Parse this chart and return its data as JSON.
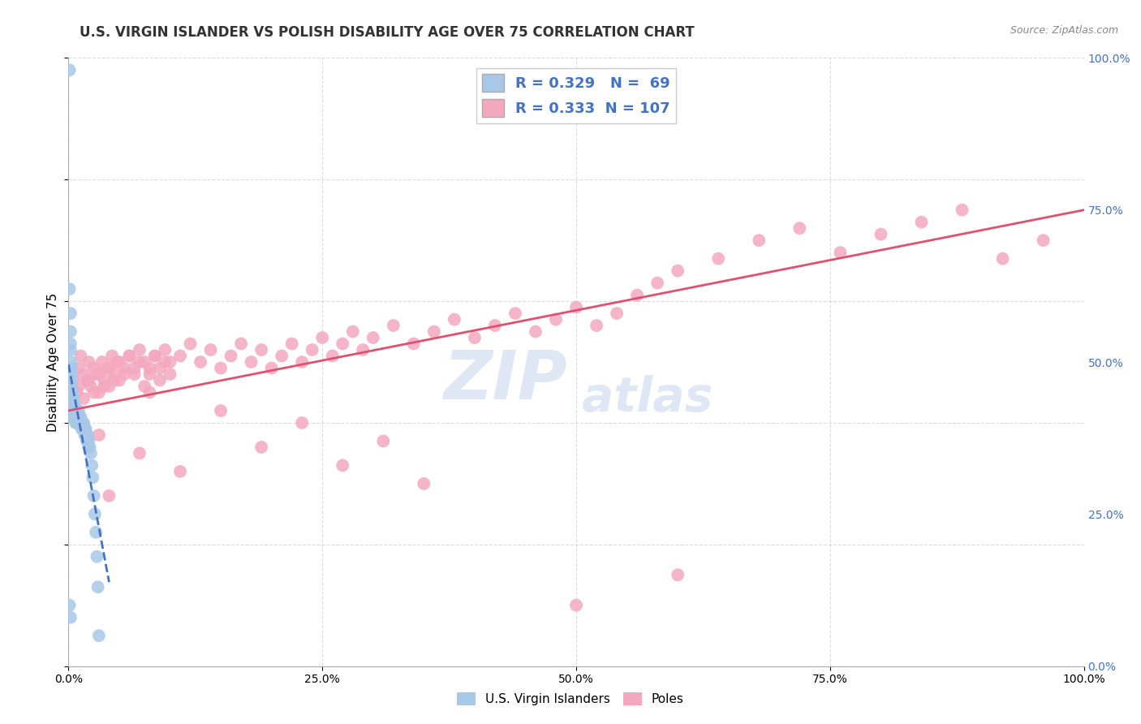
{
  "title": "U.S. VIRGIN ISLANDER VS POLISH DISABILITY AGE OVER 75 CORRELATION CHART",
  "source_text": "Source: ZipAtlas.com",
  "ylabel": "Disability Age Over 75",
  "blue_R": 0.329,
  "blue_N": 69,
  "pink_R": 0.333,
  "pink_N": 107,
  "blue_label": "U.S. Virgin Islanders",
  "pink_label": "Poles",
  "blue_color": "#A8C8E8",
  "pink_color": "#F4A8C0",
  "blue_line_color": "#4472C4",
  "pink_line_color": "#E05070",
  "background_color": "#FFFFFF",
  "watermark_color": "#C8D8EC",
  "title_fontsize": 12,
  "axis_label_fontsize": 11,
  "tick_fontsize": 10,
  "legend_fontsize": 13,
  "blue_points_x": [
    0.001,
    0.001,
    0.001,
    0.002,
    0.002,
    0.002,
    0.002,
    0.002,
    0.002,
    0.003,
    0.003,
    0.003,
    0.003,
    0.003,
    0.003,
    0.003,
    0.004,
    0.004,
    0.004,
    0.004,
    0.004,
    0.005,
    0.005,
    0.005,
    0.005,
    0.006,
    0.006,
    0.006,
    0.007,
    0.007,
    0.007,
    0.008,
    0.008,
    0.008,
    0.009,
    0.009,
    0.01,
    0.01,
    0.01,
    0.011,
    0.011,
    0.012,
    0.012,
    0.013,
    0.013,
    0.014,
    0.014,
    0.015,
    0.015,
    0.016,
    0.016,
    0.017,
    0.017,
    0.018,
    0.018,
    0.019,
    0.019,
    0.02,
    0.02,
    0.021,
    0.022,
    0.023,
    0.024,
    0.025,
    0.026,
    0.027,
    0.028,
    0.029,
    0.03
  ],
  "blue_points_y": [
    0.98,
    0.62,
    0.1,
    0.58,
    0.55,
    0.53,
    0.52,
    0.5,
    0.08,
    0.49,
    0.48,
    0.47,
    0.46,
    0.45,
    0.44,
    0.43,
    0.45,
    0.44,
    0.43,
    0.42,
    0.41,
    0.44,
    0.43,
    0.42,
    0.41,
    0.43,
    0.42,
    0.41,
    0.42,
    0.41,
    0.4,
    0.42,
    0.41,
    0.4,
    0.41,
    0.4,
    0.42,
    0.41,
    0.4,
    0.41,
    0.4,
    0.41,
    0.4,
    0.4,
    0.39,
    0.4,
    0.39,
    0.4,
    0.39,
    0.39,
    0.38,
    0.39,
    0.38,
    0.38,
    0.37,
    0.38,
    0.37,
    0.37,
    0.36,
    0.36,
    0.35,
    0.33,
    0.31,
    0.28,
    0.25,
    0.22,
    0.18,
    0.13,
    0.05
  ],
  "pink_points_x": [
    0.002,
    0.005,
    0.008,
    0.01,
    0.012,
    0.015,
    0.018,
    0.02,
    0.022,
    0.025,
    0.028,
    0.03,
    0.033,
    0.035,
    0.038,
    0.04,
    0.043,
    0.045,
    0.048,
    0.05,
    0.055,
    0.06,
    0.065,
    0.07,
    0.075,
    0.08,
    0.085,
    0.09,
    0.095,
    0.1,
    0.005,
    0.01,
    0.015,
    0.02,
    0.025,
    0.03,
    0.035,
    0.04,
    0.045,
    0.05,
    0.055,
    0.06,
    0.065,
    0.07,
    0.075,
    0.08,
    0.085,
    0.09,
    0.095,
    0.1,
    0.11,
    0.12,
    0.13,
    0.14,
    0.15,
    0.16,
    0.17,
    0.18,
    0.19,
    0.2,
    0.21,
    0.22,
    0.23,
    0.24,
    0.25,
    0.26,
    0.27,
    0.28,
    0.29,
    0.3,
    0.32,
    0.34,
    0.36,
    0.38,
    0.4,
    0.42,
    0.44,
    0.46,
    0.48,
    0.5,
    0.52,
    0.54,
    0.56,
    0.58,
    0.6,
    0.64,
    0.68,
    0.72,
    0.76,
    0.8,
    0.84,
    0.88,
    0.92,
    0.96,
    0.03,
    0.07,
    0.11,
    0.15,
    0.19,
    0.23,
    0.27,
    0.31,
    0.35,
    0.04,
    0.08,
    0.5,
    0.6
  ],
  "pink_points_y": [
    0.44,
    0.47,
    0.45,
    0.49,
    0.51,
    0.48,
    0.47,
    0.5,
    0.46,
    0.49,
    0.48,
    0.45,
    0.5,
    0.47,
    0.49,
    0.46,
    0.51,
    0.48,
    0.5,
    0.47,
    0.49,
    0.51,
    0.48,
    0.5,
    0.46,
    0.49,
    0.51,
    0.47,
    0.5,
    0.48,
    0.43,
    0.46,
    0.44,
    0.47,
    0.45,
    0.48,
    0.46,
    0.49,
    0.47,
    0.5,
    0.48,
    0.51,
    0.49,
    0.52,
    0.5,
    0.48,
    0.51,
    0.49,
    0.52,
    0.5,
    0.51,
    0.53,
    0.5,
    0.52,
    0.49,
    0.51,
    0.53,
    0.5,
    0.52,
    0.49,
    0.51,
    0.53,
    0.5,
    0.52,
    0.54,
    0.51,
    0.53,
    0.55,
    0.52,
    0.54,
    0.56,
    0.53,
    0.55,
    0.57,
    0.54,
    0.56,
    0.58,
    0.55,
    0.57,
    0.59,
    0.56,
    0.58,
    0.61,
    0.63,
    0.65,
    0.67,
    0.7,
    0.72,
    0.68,
    0.71,
    0.73,
    0.75,
    0.67,
    0.7,
    0.38,
    0.35,
    0.32,
    0.42,
    0.36,
    0.4,
    0.33,
    0.37,
    0.3,
    0.28,
    0.45,
    0.1,
    0.15
  ],
  "xlim": [
    0.0,
    1.0
  ],
  "ylim": [
    0.0,
    1.0
  ],
  "xticks": [
    0.0,
    0.25,
    0.5,
    0.75,
    1.0
  ],
  "yticks_right": [
    0.0,
    0.25,
    0.5,
    0.75,
    1.0
  ],
  "ytick_labels_right": [
    "0.0%",
    "25.0%",
    "50.0%",
    "75.0%",
    "100.0%"
  ],
  "xtick_labels": [
    "0.0%",
    "25.0%",
    "50.0%",
    "75.0%",
    "100.0%"
  ],
  "grid_color": "#CCCCCC",
  "pink_trend_x0": 0.0,
  "pink_trend_y0": 0.42,
  "pink_trend_x1": 1.0,
  "pink_trend_y1": 0.75
}
